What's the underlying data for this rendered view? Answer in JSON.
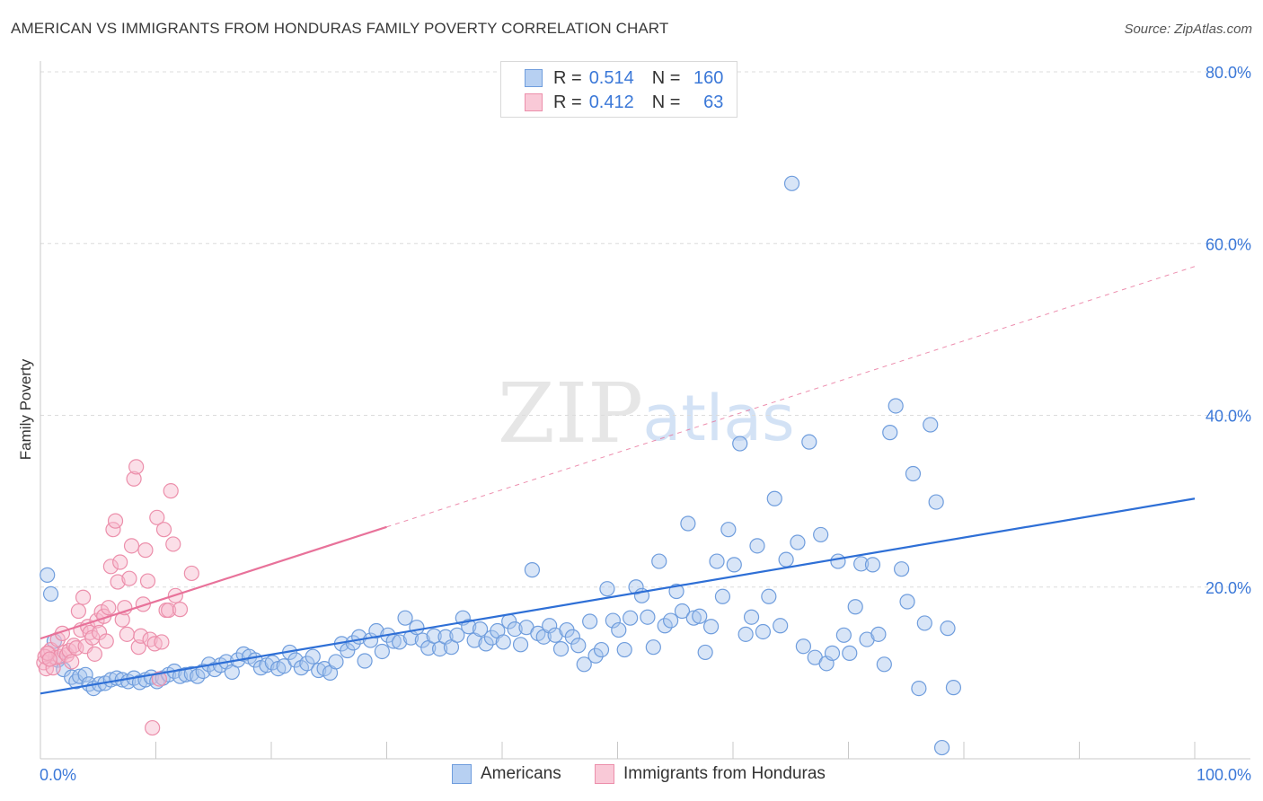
{
  "title": "AMERICAN VS IMMIGRANTS FROM HONDURAS FAMILY POVERTY CORRELATION CHART",
  "source": "Source: ZipAtlas.com",
  "watermark": {
    "zip": "ZIP",
    "atlas": "atlas"
  },
  "legend": {
    "americans": {
      "r_label": "R =",
      "r": "0.514",
      "n_label": "N =",
      "n": "160"
    },
    "honduras": {
      "r_label": "R =",
      "r": "0.412",
      "n_label": "N =",
      "n": "63"
    }
  },
  "bottom_legend": {
    "americans": "Americans",
    "honduras": "Immigrants from Honduras"
  },
  "colors": {
    "americans_fill": "#a8c6ee",
    "americans_stroke": "#6f9ddd",
    "americans_line": "#2e6fd6",
    "honduras_fill": "#f6b9cb",
    "honduras_stroke": "#ec8fab",
    "honduras_line": "#e8729a",
    "tick_label": "#3b78d8",
    "grid": "#dcdcdc"
  },
  "chart_data": {
    "type": "scatter",
    "xlabel": "",
    "ylabel": "Family Poverty",
    "xlim": [
      0,
      100
    ],
    "ylim": [
      0,
      80
    ],
    "x_tick_labels": [
      "0.0%",
      "100.0%"
    ],
    "y_ticks": [
      20,
      40,
      60,
      80
    ],
    "y_tick_labels": [
      "20.0%",
      "40.0%",
      "60.0%",
      "80.0%"
    ],
    "grid": true,
    "legend_position": "top-center",
    "series": [
      {
        "name": "Americans",
        "r": 0.514,
        "n": 160,
        "trend": {
          "x": [
            0,
            100
          ],
          "y": [
            7.6,
            30.3
          ]
        },
        "points": [
          [
            0.6,
            21.4
          ],
          [
            0.9,
            19.2
          ],
          [
            1.2,
            13.7
          ],
          [
            1.5,
            11.5
          ],
          [
            2.0,
            10.4
          ],
          [
            2.7,
            9.5
          ],
          [
            3.1,
            9.0
          ],
          [
            3.4,
            9.6
          ],
          [
            3.9,
            9.8
          ],
          [
            4.2,
            8.7
          ],
          [
            4.6,
            8.2
          ],
          [
            5.1,
            8.7
          ],
          [
            5.6,
            8.8
          ],
          [
            6.1,
            9.2
          ],
          [
            6.6,
            9.4
          ],
          [
            7.1,
            9.2
          ],
          [
            7.6,
            9.0
          ],
          [
            8.1,
            9.4
          ],
          [
            8.6,
            8.9
          ],
          [
            9.1,
            9.2
          ],
          [
            9.6,
            9.5
          ],
          [
            10.1,
            9.0
          ],
          [
            10.6,
            9.4
          ],
          [
            11.1,
            9.8
          ],
          [
            11.6,
            10.2
          ],
          [
            12.1,
            9.6
          ],
          [
            12.6,
            9.8
          ],
          [
            13.1,
            9.9
          ],
          [
            13.6,
            9.6
          ],
          [
            14.1,
            10.2
          ],
          [
            14.6,
            11.0
          ],
          [
            15.1,
            10.4
          ],
          [
            15.6,
            10.9
          ],
          [
            16.1,
            11.3
          ],
          [
            16.6,
            10.1
          ],
          [
            17.1,
            11.5
          ],
          [
            17.6,
            12.2
          ],
          [
            18.1,
            11.9
          ],
          [
            18.6,
            11.5
          ],
          [
            19.1,
            10.6
          ],
          [
            19.6,
            10.9
          ],
          [
            20.1,
            11.2
          ],
          [
            20.6,
            10.5
          ],
          [
            21.1,
            10.8
          ],
          [
            21.6,
            12.4
          ],
          [
            22.1,
            11.5
          ],
          [
            22.6,
            10.6
          ],
          [
            23.1,
            11.1
          ],
          [
            23.6,
            11.9
          ],
          [
            24.1,
            10.3
          ],
          [
            24.6,
            10.5
          ],
          [
            25.1,
            10.0
          ],
          [
            25.6,
            11.3
          ],
          [
            26.1,
            13.4
          ],
          [
            26.6,
            12.6
          ],
          [
            27.1,
            13.5
          ],
          [
            27.6,
            14.2
          ],
          [
            28.1,
            11.4
          ],
          [
            28.6,
            13.8
          ],
          [
            29.1,
            14.9
          ],
          [
            29.6,
            12.5
          ],
          [
            30.1,
            14.4
          ],
          [
            30.6,
            13.7
          ],
          [
            31.1,
            13.6
          ],
          [
            31.6,
            16.4
          ],
          [
            32.1,
            14.1
          ],
          [
            32.6,
            15.3
          ],
          [
            33.1,
            13.8
          ],
          [
            33.6,
            12.9
          ],
          [
            34.1,
            14.3
          ],
          [
            34.6,
            12.8
          ],
          [
            35.1,
            14.2
          ],
          [
            35.6,
            13.0
          ],
          [
            36.1,
            14.4
          ],
          [
            36.6,
            16.4
          ],
          [
            37.1,
            15.4
          ],
          [
            37.6,
            13.8
          ],
          [
            38.1,
            15.1
          ],
          [
            38.6,
            13.4
          ],
          [
            39.1,
            14.1
          ],
          [
            39.6,
            14.9
          ],
          [
            40.1,
            13.6
          ],
          [
            40.6,
            16.0
          ],
          [
            41.1,
            15.1
          ],
          [
            41.6,
            13.3
          ],
          [
            42.1,
            15.3
          ],
          [
            42.6,
            22.0
          ],
          [
            43.1,
            14.6
          ],
          [
            43.6,
            14.2
          ],
          [
            44.1,
            15.5
          ],
          [
            44.6,
            14.4
          ],
          [
            45.1,
            12.8
          ],
          [
            45.6,
            15.0
          ],
          [
            46.1,
            14.2
          ],
          [
            46.6,
            13.2
          ],
          [
            47.1,
            11.0
          ],
          [
            47.6,
            16.0
          ],
          [
            48.1,
            12.0
          ],
          [
            48.6,
            12.7
          ],
          [
            49.1,
            19.8
          ],
          [
            49.6,
            16.1
          ],
          [
            50.1,
            15.0
          ],
          [
            50.6,
            12.7
          ],
          [
            51.1,
            16.4
          ],
          [
            51.6,
            20.0
          ],
          [
            52.1,
            19.0
          ],
          [
            52.6,
            16.5
          ],
          [
            53.1,
            13.0
          ],
          [
            53.6,
            23.0
          ],
          [
            54.1,
            15.5
          ],
          [
            54.6,
            16.1
          ],
          [
            55.1,
            19.5
          ],
          [
            55.6,
            17.2
          ],
          [
            56.1,
            27.4
          ],
          [
            56.6,
            16.4
          ],
          [
            57.1,
            16.6
          ],
          [
            57.6,
            12.4
          ],
          [
            58.1,
            15.4
          ],
          [
            58.6,
            23.0
          ],
          [
            59.1,
            18.9
          ],
          [
            59.6,
            26.7
          ],
          [
            60.1,
            22.6
          ],
          [
            60.6,
            36.7
          ],
          [
            61.1,
            14.5
          ],
          [
            61.6,
            16.5
          ],
          [
            62.1,
            24.8
          ],
          [
            62.6,
            14.8
          ],
          [
            63.1,
            18.9
          ],
          [
            63.6,
            30.3
          ],
          [
            64.1,
            15.5
          ],
          [
            64.6,
            23.2
          ],
          [
            65.1,
            67.0
          ],
          [
            65.6,
            25.2
          ],
          [
            66.1,
            13.1
          ],
          [
            66.6,
            36.9
          ],
          [
            67.1,
            11.8
          ],
          [
            67.6,
            26.1
          ],
          [
            68.1,
            11.1
          ],
          [
            68.6,
            12.3
          ],
          [
            69.1,
            23.0
          ],
          [
            69.6,
            14.4
          ],
          [
            70.1,
            12.3
          ],
          [
            70.6,
            17.7
          ],
          [
            71.1,
            22.7
          ],
          [
            71.6,
            13.9
          ],
          [
            72.1,
            22.6
          ],
          [
            72.6,
            14.5
          ],
          [
            73.1,
            11.0
          ],
          [
            73.6,
            38.0
          ],
          [
            74.1,
            41.1
          ],
          [
            74.6,
            22.1
          ],
          [
            75.1,
            18.3
          ],
          [
            75.6,
            33.2
          ],
          [
            76.1,
            8.2
          ],
          [
            76.6,
            15.8
          ],
          [
            77.1,
            38.9
          ],
          [
            77.6,
            29.9
          ],
          [
            78.1,
            1.3
          ],
          [
            78.6,
            15.2
          ],
          [
            79.1,
            8.3
          ]
        ]
      },
      {
        "name": "Immigrants from Honduras",
        "r": 0.412,
        "n": 63,
        "trend": {
          "x": [
            0,
            30
          ],
          "y": [
            14.0,
            27.0
          ]
        },
        "points": [
          [
            0.3,
            11.2
          ],
          [
            0.5,
            10.5
          ],
          [
            0.7,
            12.3
          ],
          [
            0.9,
            12.7
          ],
          [
            1.1,
            10.6
          ],
          [
            1.3,
            11.8
          ],
          [
            1.5,
            13.9
          ],
          [
            1.7,
            11.9
          ],
          [
            1.9,
            14.6
          ],
          [
            2.1,
            12.4
          ],
          [
            2.3,
            12.1
          ],
          [
            2.5,
            12.6
          ],
          [
            2.7,
            11.3
          ],
          [
            2.9,
            13.2
          ],
          [
            3.1,
            12.9
          ],
          [
            3.3,
            17.2
          ],
          [
            3.5,
            15.0
          ],
          [
            3.7,
            18.8
          ],
          [
            3.9,
            13.1
          ],
          [
            4.1,
            15.4
          ],
          [
            4.3,
            14.7
          ],
          [
            4.5,
            14.1
          ],
          [
            4.7,
            12.2
          ],
          [
            4.9,
            16.1
          ],
          [
            5.1,
            14.7
          ],
          [
            5.3,
            17.1
          ],
          [
            5.5,
            16.6
          ],
          [
            5.7,
            13.7
          ],
          [
            5.9,
            17.6
          ],
          [
            6.1,
            22.4
          ],
          [
            6.3,
            26.7
          ],
          [
            6.5,
            27.7
          ],
          [
            6.7,
            20.6
          ],
          [
            6.9,
            22.9
          ],
          [
            7.1,
            16.2
          ],
          [
            7.3,
            17.6
          ],
          [
            7.5,
            14.5
          ],
          [
            7.7,
            21.0
          ],
          [
            7.9,
            24.8
          ],
          [
            8.1,
            32.6
          ],
          [
            8.3,
            34.0
          ],
          [
            8.5,
            13.0
          ],
          [
            8.7,
            14.3
          ],
          [
            8.9,
            18.0
          ],
          [
            9.1,
            24.3
          ],
          [
            9.3,
            20.7
          ],
          [
            9.5,
            13.9
          ],
          [
            9.7,
            3.6
          ],
          [
            9.9,
            13.4
          ],
          [
            10.1,
            28.1
          ],
          [
            10.3,
            9.3
          ],
          [
            10.5,
            13.6
          ],
          [
            10.7,
            26.7
          ],
          [
            10.9,
            17.3
          ],
          [
            11.1,
            17.3
          ],
          [
            11.3,
            31.2
          ],
          [
            11.5,
            25.0
          ],
          [
            11.7,
            19.0
          ],
          [
            12.1,
            17.4
          ],
          [
            13.1,
            21.6
          ],
          [
            0.4,
            11.9
          ],
          [
            0.6,
            12.3
          ],
          [
            0.8,
            11.6
          ]
        ]
      }
    ]
  }
}
